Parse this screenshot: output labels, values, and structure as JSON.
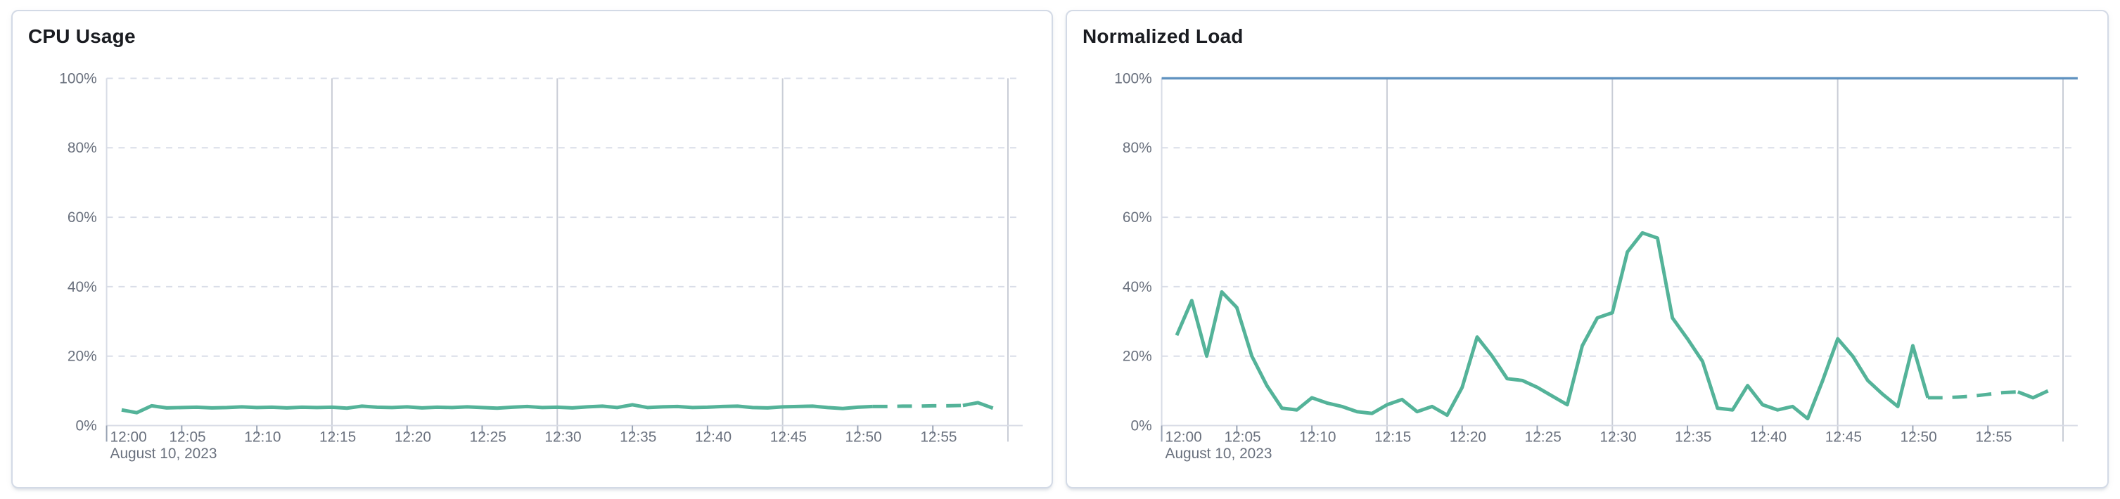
{
  "panels": [
    {
      "title": "CPU Usage"
    },
    {
      "title": "Normalized Load"
    }
  ],
  "palette": {
    "series_green": "#54b399",
    "series_blue": "#6092c0",
    "gridline_dashed": "#d9dde8",
    "gridline_solid": "#c9cdd6",
    "axis_line": "#d8dce6",
    "tick_mark": "#98a2b3",
    "label_text": "#69707d",
    "title_text": "#1a1c21",
    "card_border": "#d3dae6"
  },
  "chart_data": [
    {
      "type": "line",
      "title": "CPU Usage",
      "x_axis": {
        "range": [
          "12:00",
          "13:00"
        ],
        "tick_interval_min": 5,
        "tick_labels": [
          "12:00",
          "12:05",
          "12:10",
          "12:15",
          "12:20",
          "12:25",
          "12:30",
          "12:35",
          "12:40",
          "12:45",
          "12:50",
          "12:55"
        ],
        "gridline_minutes": [
          15,
          30,
          45,
          60
        ],
        "context_label": "August 10, 2023"
      },
      "y_axis": {
        "range": [
          0,
          100
        ],
        "ticks": [
          0,
          20,
          40,
          60,
          80,
          100
        ],
        "tick_labels": [
          "0%",
          "20%",
          "40%",
          "60%",
          "80%",
          "100%"
        ],
        "unit": "%",
        "grid": "dashed"
      },
      "series": [
        {
          "name": "cpu-usage",
          "color": "#54b399",
          "dash_start_min": 51,
          "dash_end_min": 57,
          "points": [
            [
              1,
              4.5
            ],
            [
              2,
              3.7
            ],
            [
              3,
              5.7
            ],
            [
              4,
              5.1
            ],
            [
              5,
              5.2
            ],
            [
              6,
              5.3
            ],
            [
              7,
              5.1
            ],
            [
              8,
              5.2
            ],
            [
              9,
              5.4
            ],
            [
              10,
              5.2
            ],
            [
              11,
              5.3
            ],
            [
              12,
              5.1
            ],
            [
              13,
              5.3
            ],
            [
              14,
              5.2
            ],
            [
              15,
              5.3
            ],
            [
              16,
              5.0
            ],
            [
              17,
              5.6
            ],
            [
              18,
              5.3
            ],
            [
              19,
              5.2
            ],
            [
              20,
              5.4
            ],
            [
              21,
              5.1
            ],
            [
              22,
              5.3
            ],
            [
              23,
              5.2
            ],
            [
              24,
              5.4
            ],
            [
              25,
              5.2
            ],
            [
              26,
              5.0
            ],
            [
              27,
              5.3
            ],
            [
              28,
              5.5
            ],
            [
              29,
              5.2
            ],
            [
              30,
              5.3
            ],
            [
              31,
              5.1
            ],
            [
              32,
              5.4
            ],
            [
              33,
              5.6
            ],
            [
              34,
              5.2
            ],
            [
              35,
              6.0
            ],
            [
              36,
              5.2
            ],
            [
              37,
              5.4
            ],
            [
              38,
              5.5
            ],
            [
              39,
              5.2
            ],
            [
              40,
              5.3
            ],
            [
              41,
              5.5
            ],
            [
              42,
              5.6
            ],
            [
              43,
              5.2
            ],
            [
              44,
              5.1
            ],
            [
              45,
              5.4
            ],
            [
              46,
              5.5
            ],
            [
              47,
              5.6
            ],
            [
              48,
              5.2
            ],
            [
              49,
              4.9
            ],
            [
              50,
              5.3
            ],
            [
              51,
              5.5
            ],
            [
              52,
              5.5
            ],
            [
              53,
              5.6
            ],
            [
              54,
              5.6
            ],
            [
              55,
              5.7
            ],
            [
              56,
              5.7
            ],
            [
              57,
              5.8
            ],
            [
              58,
              6.6
            ],
            [
              59,
              5.0
            ]
          ]
        }
      ]
    },
    {
      "type": "line",
      "title": "Normalized Load",
      "x_axis": {
        "range": [
          "12:00",
          "13:00"
        ],
        "tick_interval_min": 5,
        "tick_labels": [
          "12:00",
          "12:05",
          "12:10",
          "12:15",
          "12:20",
          "12:25",
          "12:30",
          "12:35",
          "12:40",
          "12:45",
          "12:50",
          "12:55"
        ],
        "gridline_minutes": [
          15,
          30,
          45,
          60
        ],
        "context_label": "August 10, 2023"
      },
      "y_axis": {
        "range": [
          0,
          100
        ],
        "ticks": [
          0,
          20,
          40,
          60,
          80,
          100
        ],
        "tick_labels": [
          "0%",
          "20%",
          "40%",
          "60%",
          "80%",
          "100%"
        ],
        "unit": "%",
        "grid": "dashed"
      },
      "series": [
        {
          "name": "normalized-load",
          "color": "#54b399",
          "dash_start_min": 51,
          "dash_end_min": 57,
          "points": [
            [
              1,
              26
            ],
            [
              2,
              36
            ],
            [
              3,
              20
            ],
            [
              4,
              38.5
            ],
            [
              5,
              34
            ],
            [
              6,
              20
            ],
            [
              7,
              11.5
            ],
            [
              8,
              5
            ],
            [
              9,
              4.5
            ],
            [
              10,
              8
            ],
            [
              11,
              6.5
            ],
            [
              12,
              5.5
            ],
            [
              13,
              4
            ],
            [
              14,
              3.5
            ],
            [
              15,
              6
            ],
            [
              16,
              7.5
            ],
            [
              17,
              4
            ],
            [
              18,
              5.5
            ],
            [
              19,
              3
            ],
            [
              20,
              11
            ],
            [
              21,
              25.5
            ],
            [
              22,
              20
            ],
            [
              23,
              13.5
            ],
            [
              24,
              13
            ],
            [
              25,
              11
            ],
            [
              26,
              8.5
            ],
            [
              27,
              6
            ],
            [
              28,
              23
            ],
            [
              29,
              31
            ],
            [
              30,
              32.5
            ],
            [
              31,
              50
            ],
            [
              32,
              55.5
            ],
            [
              33,
              54
            ],
            [
              34,
              31
            ],
            [
              35,
              25
            ],
            [
              36,
              18.5
            ],
            [
              37,
              5
            ],
            [
              38,
              4.5
            ],
            [
              39,
              11.5
            ],
            [
              40,
              6
            ],
            [
              41,
              4.5
            ],
            [
              42,
              5.5
            ],
            [
              43,
              2
            ],
            [
              44,
              13
            ],
            [
              45,
              25
            ],
            [
              46,
              20
            ],
            [
              47,
              13
            ],
            [
              48,
              9
            ],
            [
              49,
              5.5
            ],
            [
              50,
              23
            ],
            [
              51,
              8
            ],
            [
              52,
              8
            ],
            [
              53,
              8.2
            ],
            [
              54,
              8.5
            ],
            [
              55,
              9
            ],
            [
              56,
              9.5
            ],
            [
              57,
              9.7
            ],
            [
              58,
              8
            ],
            [
              59,
              10
            ]
          ]
        },
        {
          "name": "100%-reference",
          "color": "#6092c0",
          "constant": 100
        }
      ]
    }
  ]
}
